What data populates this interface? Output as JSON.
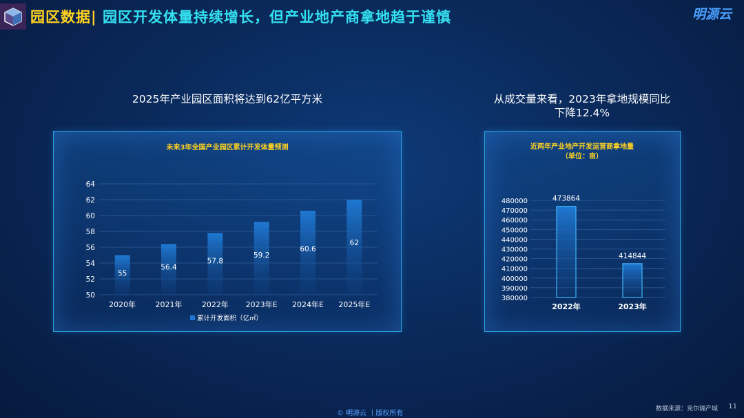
{
  "header": {
    "title_lead": "园区数据|",
    "title_rest": "园区开发体量持续增长，但产业地产商拿地趋于谨慎",
    "brand": "明源云"
  },
  "sections": {
    "left_heading": "2025年产业园区面积将达到62亿平方米",
    "right_heading_line1": "从成交量来看，2023年拿地规模同比",
    "right_heading_line2": "下降12.4%"
  },
  "footer": {
    "source": "数据来源：克尔瑞产城",
    "page_number": "11",
    "copyright": "© 明源云 丨版权所有"
  },
  "colors": {
    "accent_yellow": "#ffd21f",
    "accent_cyan": "#34e0f0",
    "bar_blue": "#1d6fc8"
  },
  "chart_data": [
    {
      "type": "bar",
      "title": "未来3年全国产业园区累计开发体量预测",
      "categories": [
        "2020年",
        "2021年",
        "2022年",
        "2023年E",
        "2024年E",
        "2025年E"
      ],
      "series": [
        {
          "name": "累计开发面积（亿㎡）",
          "values": [
            55,
            56.4,
            57.8,
            59.2,
            60.6,
            62
          ]
        }
      ],
      "ylim": [
        50,
        64
      ],
      "yticks": [
        50,
        52,
        54,
        56,
        58,
        60,
        62,
        64
      ],
      "grid": true,
      "legend": "bottom"
    },
    {
      "type": "bar",
      "title": "近两年产业地产开发运营商拿地量",
      "subtitle": "（单位：亩）",
      "categories": [
        "2022年",
        "2023年"
      ],
      "values": [
        473864,
        414844
      ],
      "ylim": [
        380000,
        480000
      ],
      "yticks": [
        380000,
        390000,
        400000,
        410000,
        420000,
        430000,
        440000,
        450000,
        460000,
        470000,
        480000
      ],
      "grid": true
    }
  ]
}
